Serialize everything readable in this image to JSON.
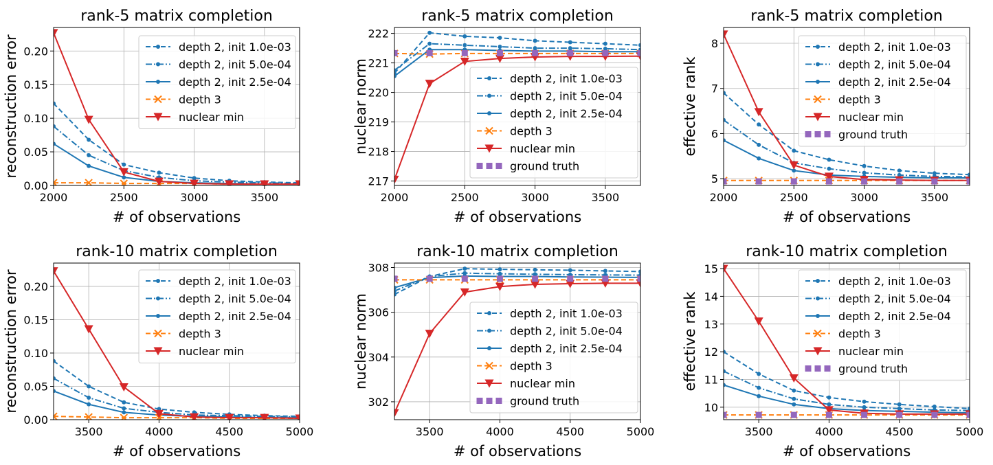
{
  "colors": {
    "depth2_1e-3": "#1f77b4",
    "depth2_5e-4": "#1f77b4",
    "depth2_2.5e-4": "#1f77b4",
    "depth3": "#ff7f0e",
    "nuclear_min": "#d62728",
    "ground_truth": "#9467bd",
    "grid": "#b0b0b0"
  },
  "chart_data": [
    {
      "type": "line",
      "title": "rank-5 matrix completion",
      "xlabel": "# of observations",
      "ylabel": "reconstruction error",
      "xlim": [
        2000,
        3750
      ],
      "ylim": [
        0,
        0.235
      ],
      "xticks": [
        2000,
        2500,
        3000,
        3500
      ],
      "yticks": [
        0,
        0.05,
        0.1,
        0.15,
        0.2
      ],
      "ytick_labels": [
        "0.00",
        "0.05",
        "0.10",
        "0.15",
        "0.20"
      ],
      "grid": true,
      "legend_position": "top-right",
      "x": [
        2000,
        2250,
        2500,
        2750,
        3000,
        3250,
        3500,
        3750
      ],
      "series": [
        {
          "name": "depth 2, init 1.0e-03",
          "style": "d2a",
          "values": [
            0.122,
            0.068,
            0.031,
            0.019,
            0.011,
            0.007,
            0.005,
            0.004
          ]
        },
        {
          "name": "depth 2, init 5.0e-04",
          "style": "d2b",
          "values": [
            0.088,
            0.045,
            0.022,
            0.012,
            0.007,
            0.005,
            0.004,
            0.003
          ]
        },
        {
          "name": "depth 2, init 2.5e-04",
          "style": "d2c",
          "values": [
            0.062,
            0.029,
            0.012,
            0.006,
            0.004,
            0.003,
            0.002,
            0.002
          ]
        },
        {
          "name": "depth 3",
          "style": "d3",
          "values": [
            0.004,
            0.004,
            0.003,
            0.003,
            0.003,
            0.002,
            0.002,
            0.002
          ]
        },
        {
          "name": "nuclear min",
          "style": "nm",
          "values": [
            0.227,
            0.098,
            0.02,
            0.006,
            0.003,
            0.002,
            0.002,
            0.002
          ]
        }
      ]
    },
    {
      "type": "line",
      "title": "rank-5 matrix completion",
      "xlabel": "# of observations",
      "ylabel": "nuclear norm",
      "xlim": [
        2000,
        3750
      ],
      "ylim": [
        216.85,
        222.2
      ],
      "xticks": [
        2000,
        2500,
        3000,
        3500
      ],
      "yticks": [
        217,
        218,
        219,
        220,
        221,
        222
      ],
      "ytick_labels": [
        "217",
        "218",
        "219",
        "220",
        "221",
        "222"
      ],
      "grid": true,
      "legend_position": "center-right",
      "x": [
        2000,
        2250,
        2500,
        2750,
        3000,
        3250,
        3500,
        3750
      ],
      "series": [
        {
          "name": "depth 2, init 1.0e-03",
          "style": "d2a",
          "values": [
            220.65,
            222.02,
            221.9,
            221.85,
            221.75,
            221.7,
            221.65,
            221.6
          ]
        },
        {
          "name": "depth 2, init 5.0e-04",
          "style": "d2b",
          "values": [
            220.75,
            221.65,
            221.6,
            221.55,
            221.5,
            221.5,
            221.48,
            221.45
          ]
        },
        {
          "name": "depth 2, init 2.5e-04",
          "style": "d2c",
          "values": [
            220.55,
            221.45,
            221.45,
            221.42,
            221.4,
            221.4,
            221.38,
            221.38
          ]
        },
        {
          "name": "depth 3",
          "style": "d3",
          "values": [
            221.32,
            221.3,
            221.32,
            221.32,
            221.32,
            221.32,
            221.32,
            221.32
          ]
        },
        {
          "name": "nuclear min",
          "style": "nm",
          "values": [
            217.05,
            220.3,
            221.05,
            221.15,
            221.2,
            221.22,
            221.22,
            221.23
          ]
        },
        {
          "name": "ground truth",
          "style": "gt",
          "values": [
            221.33,
            221.33,
            221.33,
            221.33,
            221.33,
            221.33,
            221.33,
            221.33
          ]
        }
      ]
    },
    {
      "type": "line",
      "title": "rank-5 matrix completion",
      "xlabel": "# of observations",
      "ylabel": "effective rank",
      "xlim": [
        2000,
        3750
      ],
      "ylim": [
        4.85,
        8.35
      ],
      "xticks": [
        2000,
        2500,
        3000,
        3500
      ],
      "yticks": [
        5,
        6,
        7,
        8
      ],
      "ytick_labels": [
        "5",
        "6",
        "7",
        "8"
      ],
      "grid": true,
      "legend_position": "top-right",
      "x": [
        2000,
        2250,
        2500,
        2750,
        3000,
        3250,
        3500,
        3750
      ],
      "series": [
        {
          "name": "depth 2, init 1.0e-03",
          "style": "d2a",
          "values": [
            6.9,
            6.2,
            5.62,
            5.42,
            5.28,
            5.18,
            5.12,
            5.09
          ]
        },
        {
          "name": "depth 2, init 5.0e-04",
          "style": "d2b",
          "values": [
            6.3,
            5.75,
            5.35,
            5.22,
            5.13,
            5.08,
            5.05,
            5.04
          ]
        },
        {
          "name": "depth 2, init 2.5e-04",
          "style": "d2c",
          "values": [
            5.85,
            5.45,
            5.18,
            5.08,
            5.05,
            5.03,
            5.02,
            5.02
          ]
        },
        {
          "name": "depth 3",
          "style": "d3",
          "values": [
            4.96,
            4.96,
            4.96,
            4.96,
            4.96,
            4.96,
            4.96,
            4.96
          ]
        },
        {
          "name": "nuclear min",
          "style": "nm",
          "values": [
            8.2,
            6.48,
            5.3,
            5.05,
            4.98,
            4.97,
            4.96,
            4.96
          ]
        },
        {
          "name": "ground truth",
          "style": "gt",
          "values": [
            4.94,
            4.94,
            4.94,
            4.94,
            4.94,
            4.94,
            4.94,
            4.94
          ]
        }
      ]
    },
    {
      "type": "line",
      "title": "rank-10 matrix completion",
      "xlabel": "# of observations",
      "ylabel": "reconstruction error",
      "xlim": [
        3250,
        5000
      ],
      "ylim": [
        0,
        0.235
      ],
      "xticks": [
        3500,
        4000,
        4500,
        5000
      ],
      "yticks": [
        0,
        0.05,
        0.1,
        0.15,
        0.2
      ],
      "ytick_labels": [
        "0.00",
        "0.05",
        "0.10",
        "0.15",
        "0.20"
      ],
      "grid": true,
      "legend_position": "top-right",
      "x": [
        3250,
        3500,
        3750,
        4000,
        4250,
        4500,
        4750,
        5000
      ],
      "series": [
        {
          "name": "depth 2, init 1.0e-03",
          "style": "d2a",
          "values": [
            0.088,
            0.05,
            0.026,
            0.016,
            0.011,
            0.008,
            0.006,
            0.005
          ]
        },
        {
          "name": "depth 2, init 5.0e-04",
          "style": "d2b",
          "values": [
            0.062,
            0.033,
            0.017,
            0.011,
            0.007,
            0.006,
            0.005,
            0.004
          ]
        },
        {
          "name": "depth 2, init 2.5e-04",
          "style": "d2c",
          "values": [
            0.043,
            0.023,
            0.011,
            0.007,
            0.005,
            0.004,
            0.003,
            0.003
          ]
        },
        {
          "name": "depth 3",
          "style": "d3",
          "values": [
            0.005,
            0.004,
            0.003,
            0.003,
            0.003,
            0.002,
            0.002,
            0.002
          ]
        },
        {
          "name": "nuclear min",
          "style": "nm",
          "values": [
            0.223,
            0.136,
            0.049,
            0.009,
            0.004,
            0.003,
            0.003,
            0.002
          ]
        }
      ]
    },
    {
      "type": "line",
      "title": "rank-10 matrix completion",
      "xlabel": "# of observations",
      "ylabel": "nuclear norm",
      "xlim": [
        3250,
        5000
      ],
      "ylim": [
        301.2,
        308.2
      ],
      "xticks": [
        3500,
        4000,
        4500,
        5000
      ],
      "yticks": [
        302,
        304,
        306,
        308
      ],
      "ytick_labels": [
        "302",
        "304",
        "306",
        "308"
      ],
      "grid": true,
      "legend_position": "bottom-right",
      "x": [
        3250,
        3500,
        3750,
        4000,
        4250,
        4500,
        4750,
        5000
      ],
      "series": [
        {
          "name": "depth 2, init 1.0e-03",
          "style": "d2a",
          "values": [
            306.8,
            307.6,
            307.95,
            307.92,
            307.9,
            307.88,
            307.85,
            307.82
          ]
        },
        {
          "name": "depth 2, init 5.0e-04",
          "style": "d2b",
          "values": [
            306.95,
            307.6,
            307.75,
            307.72,
            307.7,
            307.68,
            307.67,
            307.66
          ]
        },
        {
          "name": "depth 2, init 2.5e-04",
          "style": "d2c",
          "values": [
            307.1,
            307.55,
            307.62,
            307.6,
            307.6,
            307.58,
            307.57,
            307.56
          ]
        },
        {
          "name": "depth 3",
          "style": "d3",
          "values": [
            307.45,
            307.45,
            307.45,
            307.45,
            307.45,
            307.45,
            307.45,
            307.45
          ]
        },
        {
          "name": "nuclear min",
          "style": "nm",
          "values": [
            301.5,
            305.05,
            306.9,
            307.15,
            307.25,
            307.28,
            307.3,
            307.3
          ]
        },
        {
          "name": "ground truth",
          "style": "gt",
          "values": [
            307.5,
            307.5,
            307.5,
            307.5,
            307.5,
            307.5,
            307.5,
            307.5
          ]
        }
      ]
    },
    {
      "type": "line",
      "title": "rank-10 matrix completion",
      "xlabel": "# of observations",
      "ylabel": "effective rank",
      "xlim": [
        3250,
        5000
      ],
      "ylim": [
        9.55,
        15.2
      ],
      "xticks": [
        3500,
        4000,
        4500,
        5000
      ],
      "yticks": [
        10,
        11,
        12,
        13,
        14,
        15
      ],
      "ytick_labels": [
        "10",
        "11",
        "12",
        "13",
        "14",
        "15"
      ],
      "grid": true,
      "legend_position": "top-right",
      "x": [
        3250,
        3500,
        3750,
        4000,
        4250,
        4500,
        4750,
        5000
      ],
      "series": [
        {
          "name": "depth 2, init 1.0e-03",
          "style": "d2a",
          "values": [
            12.0,
            11.2,
            10.6,
            10.35,
            10.2,
            10.1,
            10.02,
            9.95
          ]
        },
        {
          "name": "depth 2, init 5.0e-04",
          "style": "d2b",
          "values": [
            11.3,
            10.7,
            10.3,
            10.1,
            10.0,
            9.95,
            9.9,
            9.88
          ]
        },
        {
          "name": "depth 2, init 2.5e-04",
          "style": "d2c",
          "values": [
            10.8,
            10.4,
            10.1,
            9.95,
            9.88,
            9.85,
            9.82,
            9.8
          ]
        },
        {
          "name": "depth 3",
          "style": "d3",
          "values": [
            9.72,
            9.72,
            9.72,
            9.72,
            9.72,
            9.72,
            9.72,
            9.72
          ]
        },
        {
          "name": "nuclear min",
          "style": "nm",
          "values": [
            15.0,
            13.1,
            11.05,
            9.9,
            9.78,
            9.75,
            9.75,
            9.75
          ]
        },
        {
          "name": "ground truth",
          "style": "gt",
          "values": [
            9.72,
            9.72,
            9.72,
            9.72,
            9.72,
            9.72,
            9.72,
            9.72
          ]
        }
      ]
    }
  ]
}
